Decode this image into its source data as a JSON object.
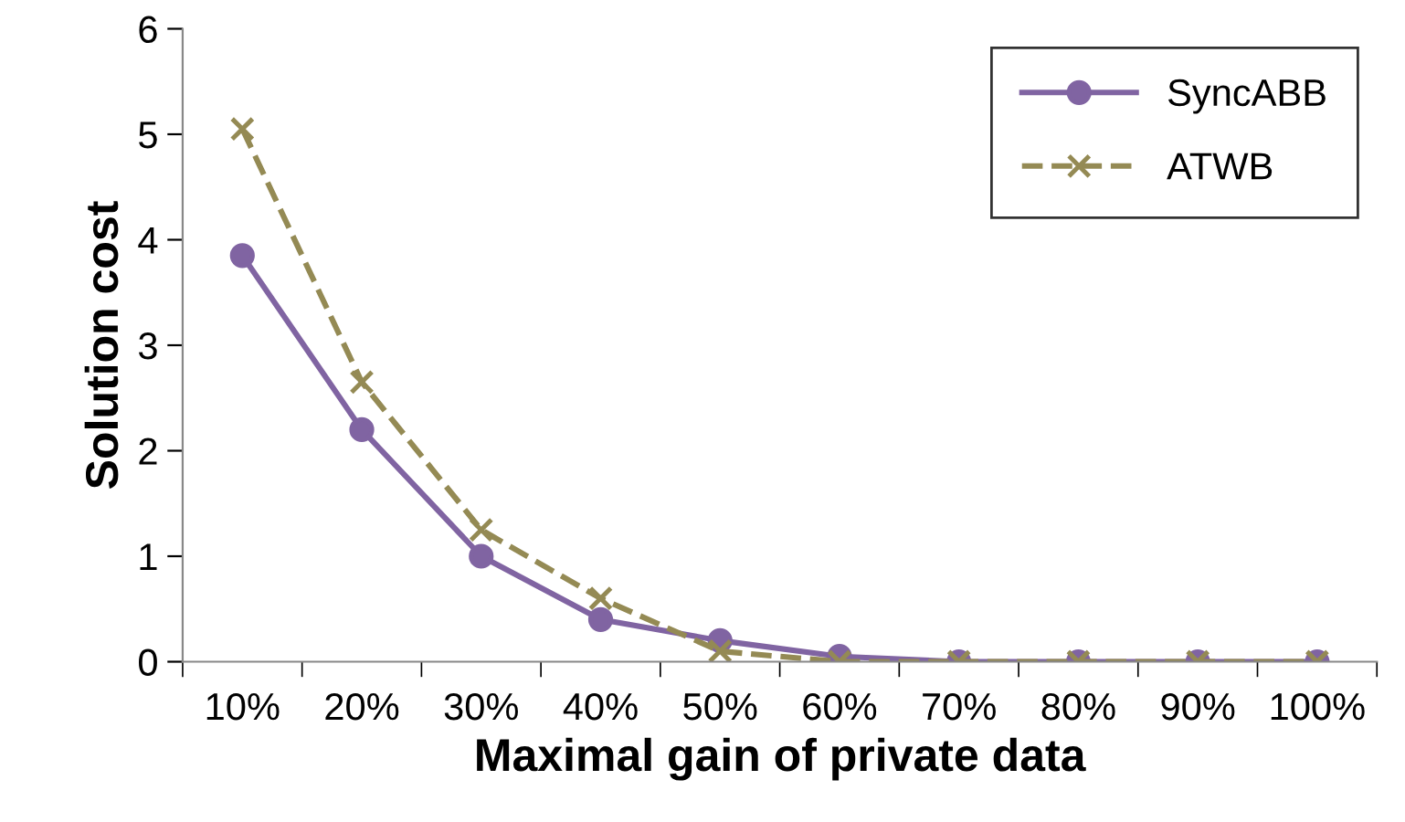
{
  "chart_data": {
    "type": "line",
    "xlabel": "Maximal gain of private data",
    "ylabel": "Solution cost",
    "categories": [
      "10%",
      "20%",
      "30%",
      "40%",
      "50%",
      "60%",
      "70%",
      "80%",
      "90%",
      "100%"
    ],
    "ylim": [
      0,
      6
    ],
    "yticks": [
      0,
      1,
      2,
      3,
      4,
      5,
      6
    ],
    "grid": false,
    "legend": "top right",
    "series": [
      {
        "name": "SyncABB",
        "color": "#8064a2",
        "marker": "circle",
        "line_style": "solid",
        "values": [
          3.85,
          2.2,
          1.0,
          0.4,
          0.2,
          0.05,
          0,
          0,
          0,
          0
        ]
      },
      {
        "name": "ATWB",
        "color": "#948a54",
        "marker": "cross",
        "line_style": "dashed",
        "values": [
          5.05,
          2.65,
          1.25,
          0.6,
          0.1,
          0,
          0,
          0,
          0,
          0
        ]
      }
    ]
  }
}
